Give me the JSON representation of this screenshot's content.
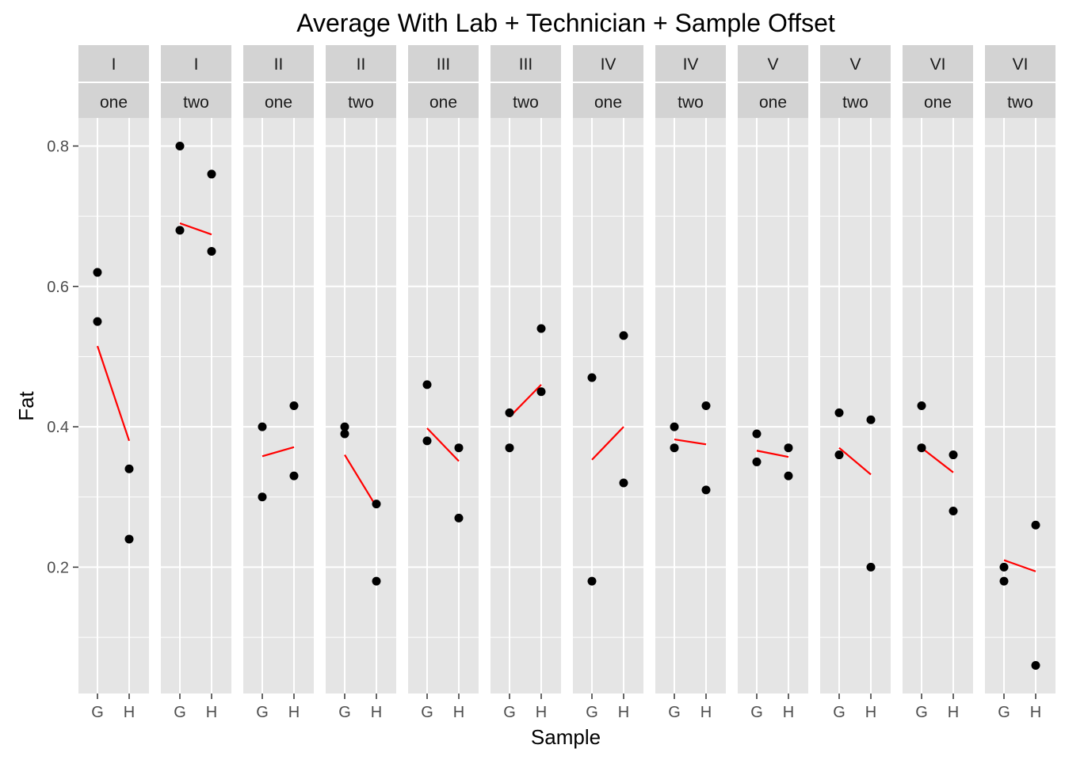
{
  "chart_data": {
    "type": "scatter",
    "title": "Average With Lab + Technician + Sample Offset",
    "xlabel": "Sample",
    "ylabel": "Fat",
    "ylim": [
      0.02,
      0.84
    ],
    "yticks": [
      0.2,
      0.4,
      0.6,
      0.8
    ],
    "ytick_labels": [
      "0.2",
      "0.4",
      "0.6",
      "0.8"
    ],
    "categories": [
      "G",
      "H"
    ],
    "grid": true,
    "colors": {
      "panel_bg": "#e5e5e5",
      "strip_bg": "#d3d3d3",
      "grid": "#ffffff",
      "points": "#000000",
      "fit_line": "#ff0000"
    },
    "facets": [
      {
        "lab": "I",
        "technician": "one",
        "points": [
          {
            "x": "G",
            "y": 0.62
          },
          {
            "x": "G",
            "y": 0.55
          },
          {
            "x": "H",
            "y": 0.34
          },
          {
            "x": "H",
            "y": 0.24
          }
        ],
        "fit": [
          0.515,
          0.38
        ]
      },
      {
        "lab": "I",
        "technician": "two",
        "points": [
          {
            "x": "G",
            "y": 0.8
          },
          {
            "x": "G",
            "y": 0.68
          },
          {
            "x": "H",
            "y": 0.76
          },
          {
            "x": "H",
            "y": 0.65
          }
        ],
        "fit": [
          0.69,
          0.674
        ]
      },
      {
        "lab": "II",
        "technician": "one",
        "points": [
          {
            "x": "G",
            "y": 0.4
          },
          {
            "x": "G",
            "y": 0.3
          },
          {
            "x": "H",
            "y": 0.43
          },
          {
            "x": "H",
            "y": 0.33
          }
        ],
        "fit": [
          0.358,
          0.371
        ]
      },
      {
        "lab": "II",
        "technician": "two",
        "points": [
          {
            "x": "G",
            "y": 0.4
          },
          {
            "x": "G",
            "y": 0.39
          },
          {
            "x": "H",
            "y": 0.29
          },
          {
            "x": "H",
            "y": 0.18
          }
        ],
        "fit": [
          0.36,
          0.286
        ]
      },
      {
        "lab": "III",
        "technician": "one",
        "points": [
          {
            "x": "G",
            "y": 0.46
          },
          {
            "x": "G",
            "y": 0.38
          },
          {
            "x": "H",
            "y": 0.37
          },
          {
            "x": "H",
            "y": 0.27
          }
        ],
        "fit": [
          0.398,
          0.351
        ]
      },
      {
        "lab": "III",
        "technician": "two",
        "points": [
          {
            "x": "G",
            "y": 0.42
          },
          {
            "x": "G",
            "y": 0.37
          },
          {
            "x": "H",
            "y": 0.54
          },
          {
            "x": "H",
            "y": 0.45
          }
        ],
        "fit": [
          0.414,
          0.46
        ]
      },
      {
        "lab": "IV",
        "technician": "one",
        "points": [
          {
            "x": "G",
            "y": 0.47
          },
          {
            "x": "G",
            "y": 0.18
          },
          {
            "x": "H",
            "y": 0.53
          },
          {
            "x": "H",
            "y": 0.32
          }
        ],
        "fit": [
          0.353,
          0.4
        ]
      },
      {
        "lab": "IV",
        "technician": "two",
        "points": [
          {
            "x": "G",
            "y": 0.4
          },
          {
            "x": "G",
            "y": 0.37
          },
          {
            "x": "H",
            "y": 0.43
          },
          {
            "x": "H",
            "y": 0.31
          }
        ],
        "fit": [
          0.382,
          0.375
        ]
      },
      {
        "lab": "V",
        "technician": "one",
        "points": [
          {
            "x": "G",
            "y": 0.39
          },
          {
            "x": "G",
            "y": 0.35
          },
          {
            "x": "H",
            "y": 0.37
          },
          {
            "x": "H",
            "y": 0.33
          }
        ],
        "fit": [
          0.366,
          0.357
        ]
      },
      {
        "lab": "V",
        "technician": "two",
        "points": [
          {
            "x": "G",
            "y": 0.42
          },
          {
            "x": "G",
            "y": 0.36
          },
          {
            "x": "H",
            "y": 0.41
          },
          {
            "x": "H",
            "y": 0.2
          }
        ],
        "fit": [
          0.37,
          0.332
        ]
      },
      {
        "lab": "VI",
        "technician": "one",
        "points": [
          {
            "x": "G",
            "y": 0.43
          },
          {
            "x": "G",
            "y": 0.37
          },
          {
            "x": "H",
            "y": 0.36
          },
          {
            "x": "H",
            "y": 0.28
          }
        ],
        "fit": [
          0.37,
          0.335
        ]
      },
      {
        "lab": "VI",
        "technician": "two",
        "points": [
          {
            "x": "G",
            "y": 0.2
          },
          {
            "x": "G",
            "y": 0.18
          },
          {
            "x": "H",
            "y": 0.26
          },
          {
            "x": "H",
            "y": 0.06
          }
        ],
        "fit": [
          0.21,
          0.194
        ]
      }
    ]
  }
}
